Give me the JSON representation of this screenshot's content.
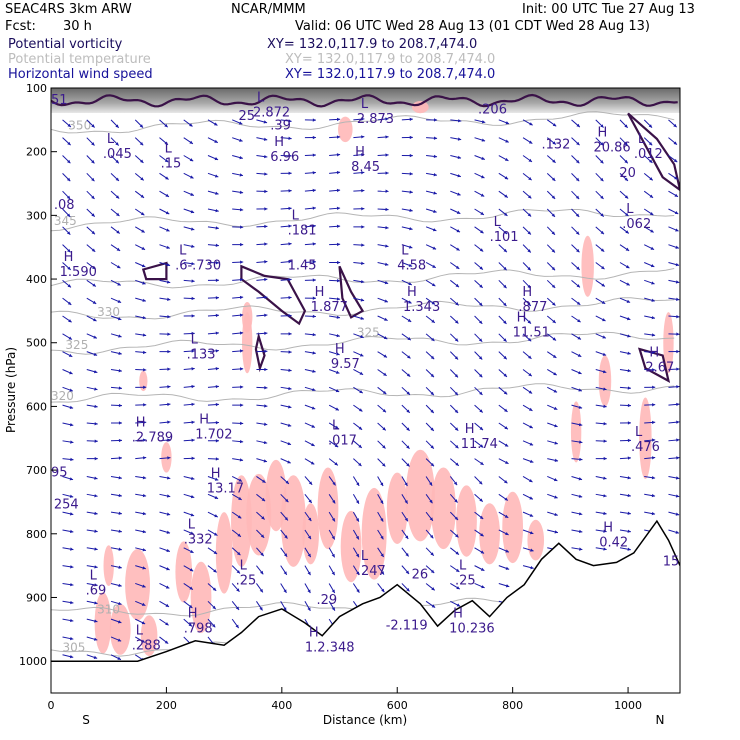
{
  "header": {
    "model_line": "SEAC4RS  3km ARW",
    "center": "NCAR/MMM",
    "init": "Init: 00 UTC Tue 27 Aug 13",
    "fcst_label": "Fcst:",
    "fcst_value": "30 h",
    "valid": "Valid: 06 UTC Wed 28 Aug 13 (01 CDT Wed 28 Aug 13)",
    "fields": [
      {
        "name": "Potential vorticity",
        "xy": "XY= 132.0,117.9 to 208.7,474.0",
        "color": "#1a0d5c"
      },
      {
        "name": "Potential temperature",
        "xy": "XY= 132.0,117.9 to 208.7,474.0",
        "color": "#bdbdbd"
      },
      {
        "name": "Horizontal wind speed",
        "xy": "XY= 132.0,117.9 to 208.7,474.0",
        "color": "#17129a"
      }
    ]
  },
  "chart_data": {
    "type": "cross-section",
    "xlabel": "Distance (km)",
    "ylabel": "Pressure (hPa)",
    "xlim": [
      0,
      1090
    ],
    "ylim": [
      1050,
      100
    ],
    "x_ticks": [
      0,
      200,
      400,
      600,
      800,
      1000
    ],
    "y_ticks": [
      100,
      200,
      300,
      400,
      500,
      600,
      700,
      800,
      900,
      1000
    ],
    "x_tick_labels": [
      "0",
      "200",
      "400",
      "600",
      "800",
      "1000"
    ],
    "y_tick_labels": [
      "100",
      "200",
      "300",
      "400",
      "500",
      "600",
      "700",
      "800",
      "900",
      "1000"
    ],
    "left_end_label": "S",
    "right_end_label": "N",
    "colors": {
      "pv_contour": "#3a1248",
      "theta": "#b5b5b5",
      "wind": "#1a1aa8",
      "pink": "#ffb8b8",
      "terrain": "#000000"
    },
    "theta_labels": [
      {
        "x": 30,
        "p": 165,
        "text": "350"
      },
      {
        "x": 5,
        "p": 315,
        "text": "345"
      },
      {
        "x": 80,
        "p": 458,
        "text": "330"
      },
      {
        "x": 25,
        "p": 510,
        "text": "325"
      },
      {
        "x": 530,
        "p": 490,
        "text": "325"
      },
      {
        "x": 0,
        "p": 590,
        "text": "320"
      },
      {
        "x": 80,
        "p": 925,
        "text": "310"
      },
      {
        "x": 20,
        "p": 985,
        "text": "305"
      }
    ],
    "extrema": [
      {
        "x": 15,
        "p": 395,
        "letter": "H",
        "value": "1.590"
      },
      {
        "x": 60,
        "p": 895,
        "letter": "L",
        "value": ".69"
      },
      {
        "x": 140,
        "p": 982,
        "letter": "L",
        "value": ".288"
      },
      {
        "x": 230,
        "p": 955,
        "letter": "H",
        "value": ".798"
      },
      {
        "x": 320,
        "p": 880,
        "letter": "L",
        "value": ".25"
      },
      {
        "x": 190,
        "p": 225,
        "letter": "L",
        "value": ".15"
      },
      {
        "x": 90,
        "p": 210,
        "letter": "L",
        "value": ".045"
      },
      {
        "x": 5,
        "p": 290,
        "letter": "",
        "value": ".08"
      },
      {
        "x": 215,
        "p": 385,
        "letter": "L",
        "value": ".6-.730"
      },
      {
        "x": 235,
        "p": 525,
        "letter": "L",
        "value": ".133"
      },
      {
        "x": 140,
        "p": 655,
        "letter": "H",
        "value": ".2.789"
      },
      {
        "x": 250,
        "p": 650,
        "letter": "H",
        "value": "1.702"
      },
      {
        "x": 270,
        "p": 735,
        "letter": "H",
        "value": "13.17"
      },
      {
        "x": 230,
        "p": 815,
        "letter": "L",
        "value": ".332"
      },
      {
        "x": 380,
        "p": 215,
        "letter": "H",
        "value": "6.96"
      },
      {
        "x": 325,
        "p": 150,
        "letter": "",
        "value": "25"
      },
      {
        "x": 350,
        "p": 145,
        "letter": "L",
        "value": "2.872"
      },
      {
        "x": 380,
        "p": 165,
        "letter": "",
        "value": ".39"
      },
      {
        "x": 410,
        "p": 330,
        "letter": "L",
        "value": ".181"
      },
      {
        "x": 410,
        "p": 385,
        "letter": "",
        "value": "1.45"
      },
      {
        "x": 450,
        "p": 450,
        "letter": "H",
        "value": "1.877"
      },
      {
        "x": 485,
        "p": 540,
        "letter": "H",
        "value": "9.57"
      },
      {
        "x": 480,
        "p": 660,
        "letter": "L",
        "value": ".017"
      },
      {
        "x": 460,
        "p": 910,
        "letter": "",
        "value": ".29"
      },
      {
        "x": 440,
        "p": 985,
        "letter": "H",
        "value": "1.2.348"
      },
      {
        "x": 520,
        "p": 230,
        "letter": "H",
        "value": "8.45"
      },
      {
        "x": 530,
        "p": 155,
        "letter": "L",
        "value": "2.873"
      },
      {
        "x": 600,
        "p": 385,
        "letter": "L",
        "value": "4.58"
      },
      {
        "x": 610,
        "p": 450,
        "letter": "H",
        "value": "1.343"
      },
      {
        "x": 530,
        "p": 865,
        "letter": "L",
        "value": ".247"
      },
      {
        "x": 580,
        "p": 950,
        "letter": "",
        "value": "-2.119"
      },
      {
        "x": 625,
        "p": 870,
        "letter": "",
        "value": "26"
      },
      {
        "x": 700,
        "p": 880,
        "letter": "L",
        "value": ".25"
      },
      {
        "x": 690,
        "p": 955,
        "letter": "H",
        "value": "10.236"
      },
      {
        "x": 710,
        "p": 665,
        "letter": "H",
        "value": "11.74"
      },
      {
        "x": 760,
        "p": 340,
        "letter": "L",
        "value": ".101"
      },
      {
        "x": 800,
        "p": 490,
        "letter": "H",
        "value": "11.51"
      },
      {
        "x": 810,
        "p": 450,
        "letter": "H",
        "value": ".877"
      },
      {
        "x": 740,
        "p": 140,
        "letter": "",
        "value": ".206"
      },
      {
        "x": 850,
        "p": 195,
        "letter": "",
        "value": ".132"
      },
      {
        "x": 940,
        "p": 200,
        "letter": "H",
        "value": "20.86"
      },
      {
        "x": 1010,
        "p": 210,
        "letter": "L",
        "value": ".012"
      },
      {
        "x": 985,
        "p": 240,
        "letter": "",
        "value": "20"
      },
      {
        "x": 990,
        "p": 320,
        "letter": "L",
        "value": ".062"
      },
      {
        "x": 1030,
        "p": 545,
        "letter": "H",
        "value": "2.67"
      },
      {
        "x": 1005,
        "p": 670,
        "letter": "L",
        "value": ".476"
      },
      {
        "x": 950,
        "p": 820,
        "letter": "H",
        "value": "0.42"
      },
      {
        "x": 1060,
        "p": 850,
        "letter": "",
        "value": "15"
      },
      {
        "x": 0,
        "p": 710,
        "letter": "",
        "value": "95"
      },
      {
        "x": 5,
        "p": 760,
        "letter": "",
        "value": "254"
      },
      {
        "x": 0,
        "p": 125,
        "letter": "",
        "value": "51"
      }
    ],
    "terrain": [
      [
        0,
        1000
      ],
      [
        150,
        1000
      ],
      [
        200,
        985
      ],
      [
        250,
        968
      ],
      [
        300,
        975
      ],
      [
        330,
        955
      ],
      [
        360,
        930
      ],
      [
        400,
        918
      ],
      [
        440,
        940
      ],
      [
        470,
        960
      ],
      [
        500,
        930
      ],
      [
        540,
        910
      ],
      [
        570,
        900
      ],
      [
        600,
        880
      ],
      [
        640,
        910
      ],
      [
        670,
        945
      ],
      [
        700,
        920
      ],
      [
        730,
        905
      ],
      [
        760,
        930
      ],
      [
        790,
        900
      ],
      [
        820,
        880
      ],
      [
        850,
        840
      ],
      [
        880,
        815
      ],
      [
        910,
        840
      ],
      [
        940,
        850
      ],
      [
        980,
        845
      ],
      [
        1010,
        830
      ],
      [
        1050,
        780
      ],
      [
        1070,
        810
      ],
      [
        1090,
        850
      ]
    ]
  }
}
